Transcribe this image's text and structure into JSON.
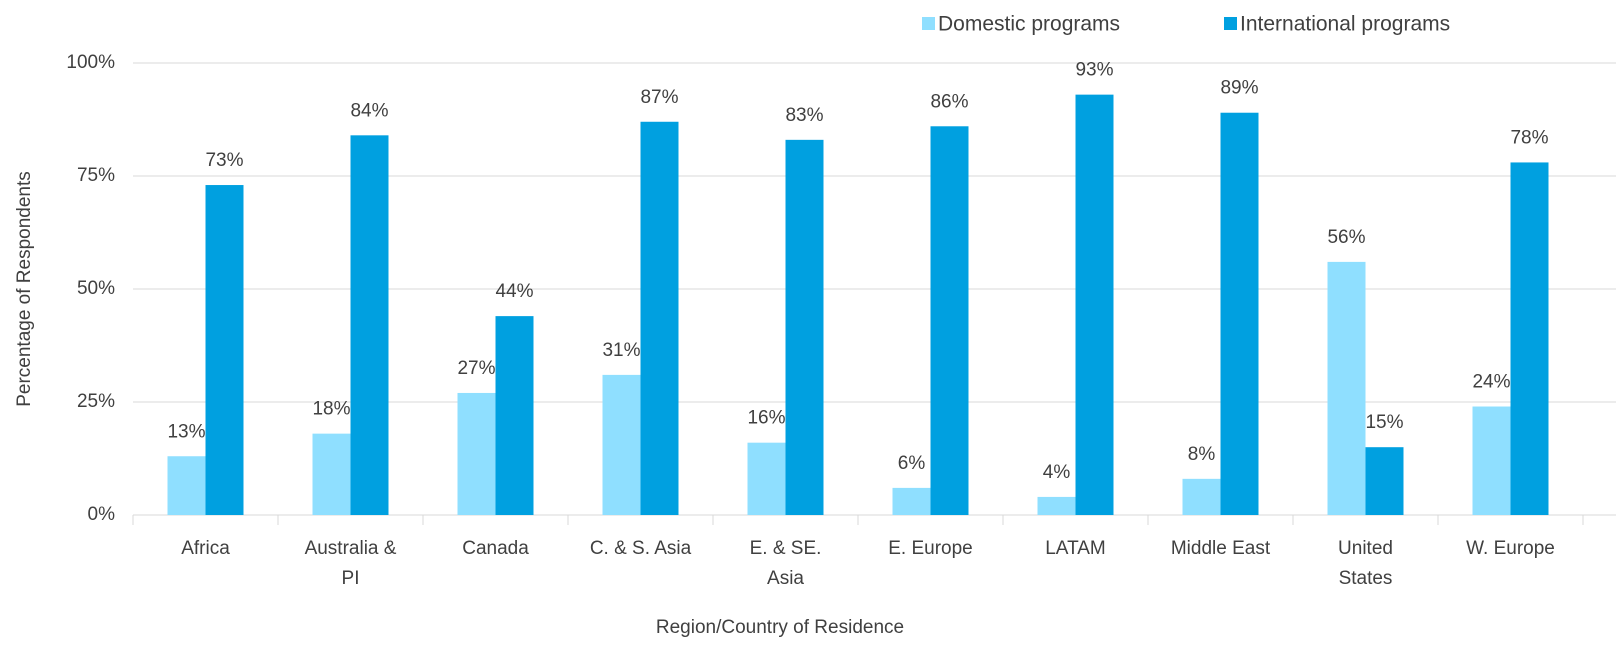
{
  "chart_data": {
    "type": "bar",
    "x_label": "Region/Country of Residence",
    "y_label": "Percentage of Respondents",
    "categories": [
      "Africa",
      "Australia & PI",
      "Canada",
      "C. & S. Asia",
      "E. & SE. Asia",
      "E. Europe",
      "LATAM",
      "Middle East",
      "United States",
      "W. Europe"
    ],
    "series": [
      {
        "name": "Domestic programs",
        "color": "#8fdfff",
        "values": [
          13,
          18,
          27,
          31,
          16,
          6,
          4,
          8,
          56,
          24
        ],
        "value_labels": [
          "13%",
          "18%",
          "27%",
          "31%",
          "16%",
          "6%",
          "4%",
          "8%",
          "56%",
          "24%"
        ]
      },
      {
        "name": "International programs",
        "color": "#00a0e0",
        "values": [
          73,
          84,
          44,
          87,
          83,
          86,
          93,
          89,
          15,
          78
        ],
        "value_labels": [
          "73%",
          "84%",
          "44%",
          "87%",
          "83%",
          "86%",
          "93%",
          "89%",
          "15%",
          "78%"
        ]
      }
    ],
    "ylim": [
      0,
      100
    ],
    "yticks": [
      {
        "value": 0,
        "label": "0%"
      },
      {
        "value": 25,
        "label": "25%"
      },
      {
        "value": 50,
        "label": "50%"
      },
      {
        "value": 75,
        "label": "75%"
      },
      {
        "value": 100,
        "label": "100%"
      }
    ],
    "grid": true,
    "legend": "top-right"
  }
}
